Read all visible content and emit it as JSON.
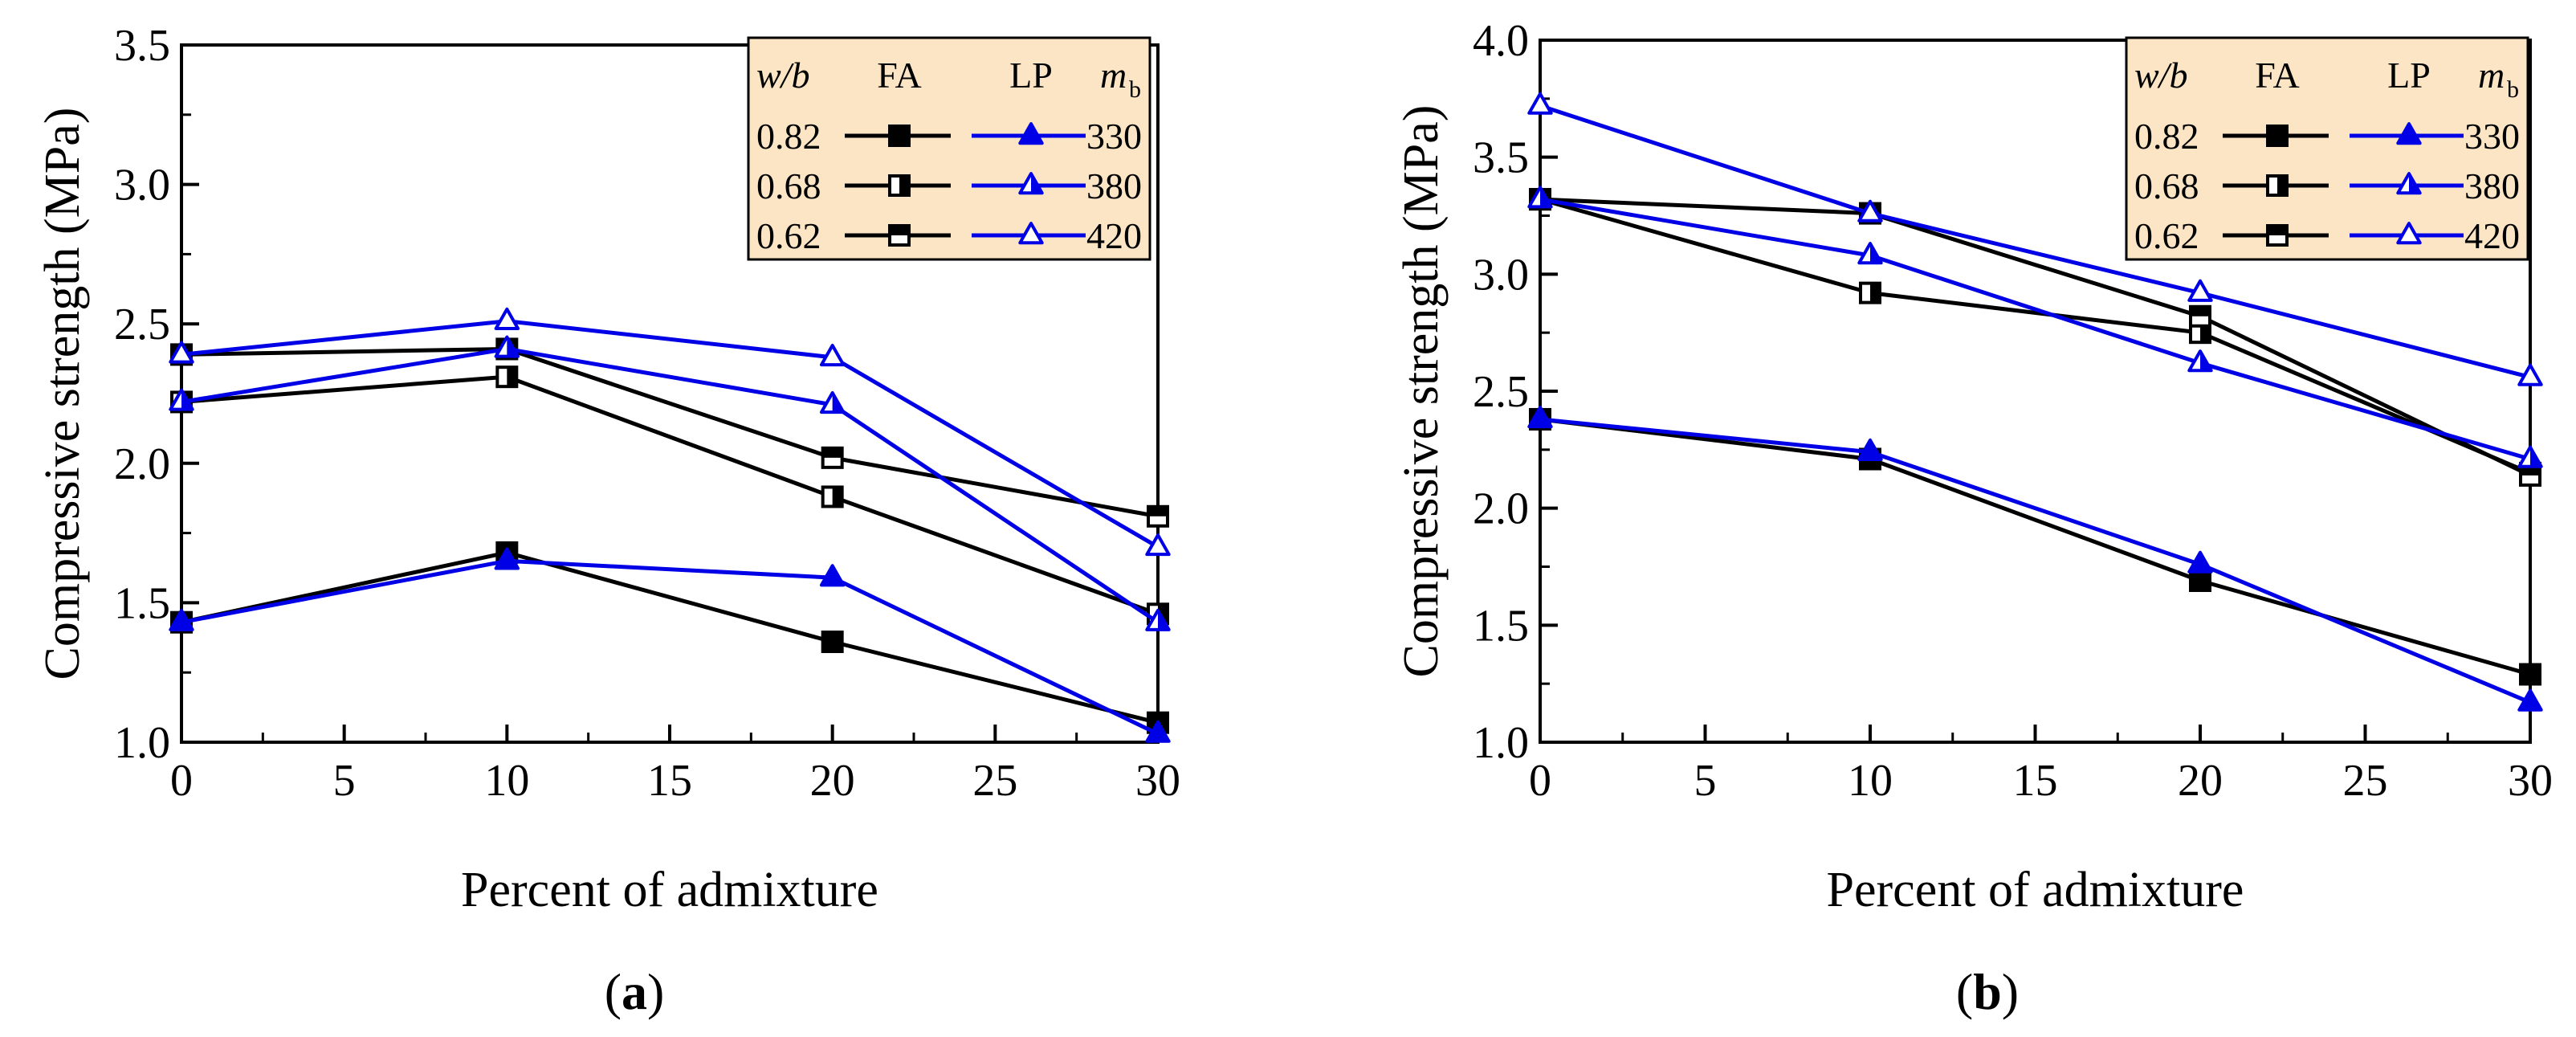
{
  "figure": {
    "panels": [
      "a",
      "b"
    ]
  },
  "legend": {
    "header_wb": "w/b",
    "header_fa": "FA",
    "header_lp": "LP",
    "header_mb": "m",
    "header_mb_sub": "b",
    "rows": [
      {
        "wb": "0.82",
        "mb": "330",
        "fa_marker": "filled",
        "lp_marker": "filled"
      },
      {
        "wb": "0.68",
        "mb": "380",
        "fa_marker": "half",
        "lp_marker": "half"
      },
      {
        "wb": "0.62",
        "mb": "420",
        "fa_marker": "top-half",
        "lp_marker": "open"
      }
    ],
    "bg_color": "#fbe5c4"
  },
  "colors": {
    "fa": "#000000",
    "lp": "#0000e6"
  },
  "chart_data": [
    {
      "type": "line",
      "panel_label": "a",
      "title": "",
      "xlabel": "Percent of admixture",
      "ylabel": "Compressive strength (MPa)",
      "xlim": [
        0,
        30
      ],
      "ylim": [
        1.0,
        3.5
      ],
      "x": [
        0,
        10,
        20,
        30
      ],
      "xticks": [
        "0",
        "5",
        "10",
        "15",
        "20",
        "25",
        "30"
      ],
      "yticks": [
        "1.0",
        "1.5",
        "2.0",
        "2.5",
        "3.0",
        "3.5"
      ],
      "series": [
        {
          "name": "FA 0.82 / 330",
          "group": "FA",
          "marker": "filled",
          "values": [
            1.43,
            1.68,
            1.36,
            1.07
          ]
        },
        {
          "name": "FA 0.68 / 380",
          "group": "FA",
          "marker": "half",
          "values": [
            2.22,
            2.31,
            1.88,
            1.46
          ]
        },
        {
          "name": "FA 0.62 / 420",
          "group": "FA",
          "marker": "top-half",
          "values": [
            2.39,
            2.41,
            2.02,
            1.81
          ]
        },
        {
          "name": "LP 0.82 / 330",
          "group": "LP",
          "marker": "filled",
          "values": [
            1.43,
            1.65,
            1.59,
            1.03
          ]
        },
        {
          "name": "LP 0.68 / 380",
          "group": "LP",
          "marker": "half",
          "values": [
            2.22,
            2.41,
            2.21,
            1.43
          ]
        },
        {
          "name": "LP 0.62 / 420",
          "group": "LP",
          "marker": "open",
          "values": [
            2.39,
            2.51,
            2.38,
            1.7
          ]
        }
      ]
    },
    {
      "type": "line",
      "panel_label": "b",
      "title": "",
      "xlabel": "Percent of admixture",
      "ylabel": "Compressive strength (MPa)",
      "xlim": [
        0,
        30
      ],
      "ylim": [
        1.0,
        4.0
      ],
      "x": [
        0,
        10,
        20,
        30
      ],
      "xticks": [
        "0",
        "5",
        "10",
        "15",
        "20",
        "25",
        "30"
      ],
      "yticks": [
        "1.0",
        "1.5",
        "2.0",
        "2.5",
        "3.0",
        "3.5",
        "4.0"
      ],
      "series": [
        {
          "name": "FA 0.82 / 330",
          "group": "FA",
          "marker": "filled",
          "values": [
            2.38,
            2.21,
            1.69,
            1.29
          ]
        },
        {
          "name": "FA 0.68 / 380",
          "group": "FA",
          "marker": "half",
          "values": [
            3.32,
            2.92,
            2.75,
            2.15
          ]
        },
        {
          "name": "FA 0.62 / 420",
          "group": "FA",
          "marker": "top-half",
          "values": [
            3.32,
            3.26,
            2.82,
            2.14
          ]
        },
        {
          "name": "LP 0.82 / 330",
          "group": "LP",
          "marker": "filled",
          "values": [
            2.38,
            2.24,
            1.76,
            1.17
          ]
        },
        {
          "name": "LP 0.68 / 380",
          "group": "LP",
          "marker": "half",
          "values": [
            3.32,
            3.08,
            2.62,
            2.21
          ]
        },
        {
          "name": "LP 0.62 / 420",
          "group": "LP",
          "marker": "open",
          "values": [
            3.72,
            3.26,
            2.92,
            2.56
          ]
        }
      ]
    }
  ]
}
